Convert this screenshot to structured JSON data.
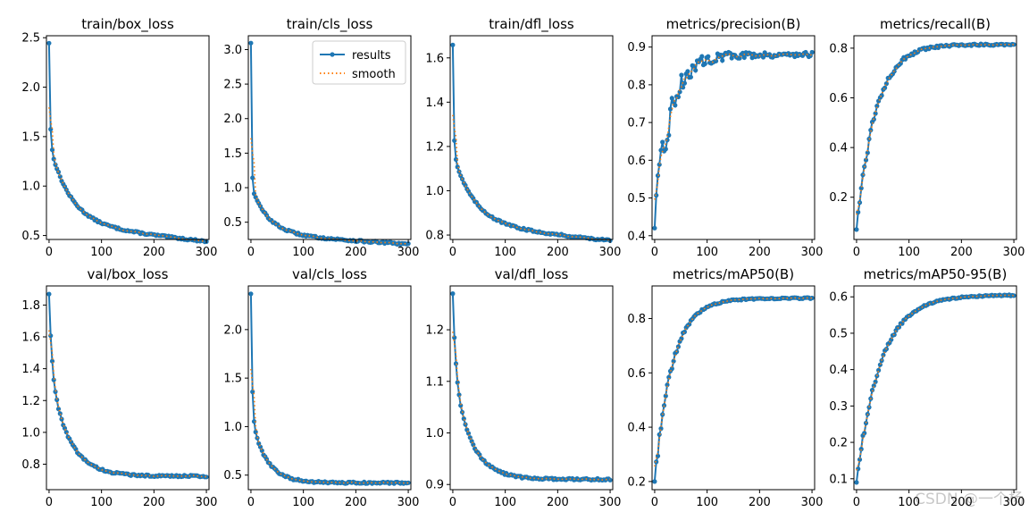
{
  "watermark": "CSDN @一个杨",
  "colors": {
    "results": "#1f77b4",
    "smooth": "#ff7f0e",
    "axis": "#000000",
    "background": "#ffffff"
  },
  "legend": {
    "results_label": "results",
    "smooth_label": "smooth",
    "placement": "upper-right of train/cls_loss"
  },
  "chart_data": [
    {
      "type": "line",
      "title": "train/box_loss",
      "xlim": [
        -5,
        305
      ],
      "ylim": [
        0.46,
        2.52
      ],
      "xticks": [
        0,
        100,
        200,
        300
      ],
      "yticks": [
        0.5,
        1.0,
        1.5,
        2.0,
        2.5
      ],
      "ytick_labels": [
        "0.5",
        "1.0",
        "1.5",
        "2.0",
        "2.5"
      ],
      "series": [
        {
          "name": "results",
          "kind": "decay",
          "start": 2.45,
          "asymptote": 0.62,
          "end": 0.55,
          "fast_rate": 0.55,
          "slow_rate": 0.025,
          "slow_weight": 0.45,
          "linear_slope": 0.0006
        }
      ]
    },
    {
      "type": "line",
      "title": "train/cls_loss",
      "xlim": [
        -5,
        305
      ],
      "ylim": [
        0.25,
        3.2
      ],
      "xticks": [
        0,
        100,
        200,
        300
      ],
      "yticks": [
        0.5,
        1.0,
        1.5,
        2.0,
        2.5,
        3.0
      ],
      "ytick_labels": [
        "0.5",
        "1.0",
        "1.5",
        "2.0",
        "2.5",
        "3.0"
      ],
      "legend": true,
      "series": [
        {
          "name": "results",
          "kind": "decay",
          "start": 3.1,
          "asymptote": 0.33,
          "end": 0.31,
          "fast_rate": 0.8,
          "slow_rate": 0.03,
          "slow_weight": 0.25,
          "linear_slope": 0.0005
        }
      ]
    },
    {
      "type": "line",
      "title": "train/dfl_loss",
      "xlim": [
        -5,
        305
      ],
      "ylim": [
        0.78,
        1.7
      ],
      "xticks": [
        0,
        100,
        200,
        300
      ],
      "yticks": [
        0.8,
        1.0,
        1.2,
        1.4,
        1.6
      ],
      "ytick_labels": [
        "0.8",
        "1.0",
        "1.2",
        "1.4",
        "1.6"
      ],
      "series": [
        {
          "name": "results",
          "kind": "decay",
          "start": 1.66,
          "asymptote": 0.85,
          "end": 0.83,
          "fast_rate": 0.6,
          "slow_rate": 0.025,
          "slow_weight": 0.4,
          "linear_slope": 0.00025
        }
      ]
    },
    {
      "type": "line",
      "title": "metrics/precision(B)",
      "xlim": [
        -5,
        305
      ],
      "ylim": [
        0.39,
        0.93
      ],
      "xticks": [
        0,
        100,
        200,
        300
      ],
      "yticks": [
        0.4,
        0.5,
        0.6,
        0.7,
        0.8,
        0.9
      ],
      "ytick_labels": [
        "0.4",
        "0.5",
        "0.6",
        "0.7",
        "0.8",
        "0.9"
      ],
      "series": [
        {
          "name": "results",
          "kind": "noisy_rise",
          "start": 0.42,
          "plateau": 0.88,
          "rate": 0.035,
          "noise": 0.055,
          "noise_decay": 0.02
        }
      ]
    },
    {
      "type": "line",
      "title": "metrics/recall(B)",
      "xlim": [
        -5,
        305
      ],
      "ylim": [
        0.03,
        0.85
      ],
      "xticks": [
        0,
        100,
        200,
        300
      ],
      "yticks": [
        0.2,
        0.4,
        0.6,
        0.8
      ],
      "ytick_labels": [
        "0.2",
        "0.4",
        "0.6",
        "0.8"
      ],
      "series": [
        {
          "name": "results",
          "kind": "noisy_rise",
          "start": 0.07,
          "plateau": 0.815,
          "rate": 0.028,
          "noise": 0.03,
          "noise_decay": 0.02
        }
      ]
    },
    {
      "type": "line",
      "title": "val/box_loss",
      "xlim": [
        -5,
        305
      ],
      "ylim": [
        0.64,
        1.92
      ],
      "xticks": [
        0,
        100,
        200,
        300
      ],
      "yticks": [
        0.8,
        1.0,
        1.2,
        1.4,
        1.6,
        1.8
      ],
      "ytick_labels": [
        "0.8",
        "1.0",
        "1.2",
        "1.4",
        "1.6",
        "1.8"
      ],
      "series": [
        {
          "name": "results",
          "kind": "decay",
          "start": 1.87,
          "asymptote": 0.725,
          "end": 0.725,
          "fast_rate": 0.2,
          "slow_rate": 0.028,
          "slow_weight": 0.6,
          "linear_slope": 0
        }
      ]
    },
    {
      "type": "line",
      "title": "val/cls_loss",
      "xlim": [
        -5,
        305
      ],
      "ylim": [
        0.35,
        2.45
      ],
      "xticks": [
        0,
        100,
        200,
        300
      ],
      "yticks": [
        0.5,
        1.0,
        1.5,
        2.0
      ],
      "ytick_labels": [
        "0.5",
        "1.0",
        "1.5",
        "2.0"
      ],
      "series": [
        {
          "name": "results",
          "kind": "decay",
          "start": 2.37,
          "asymptote": 0.42,
          "end": 0.42,
          "fast_rate": 0.45,
          "slow_rate": 0.035,
          "slow_weight": 0.35,
          "linear_slope": 0
        }
      ]
    },
    {
      "type": "line",
      "title": "val/dfl_loss",
      "xlim": [
        -5,
        305
      ],
      "ylim": [
        0.89,
        1.285
      ],
      "xticks": [
        0,
        100,
        200,
        300
      ],
      "yticks": [
        0.9,
        1.0,
        1.1,
        1.2
      ],
      "ytick_labels": [
        "0.9",
        "1.0",
        "1.1",
        "1.2"
      ],
      "series": [
        {
          "name": "results",
          "kind": "decay",
          "start": 1.27,
          "asymptote": 0.91,
          "end": 0.91,
          "fast_rate": 0.2,
          "slow_rate": 0.03,
          "slow_weight": 0.6,
          "linear_slope": 0
        }
      ]
    },
    {
      "type": "line",
      "title": "metrics/mAP50(B)",
      "xlim": [
        -5,
        305
      ],
      "ylim": [
        0.17,
        0.92
      ],
      "xticks": [
        0,
        100,
        200,
        300
      ],
      "yticks": [
        0.2,
        0.4,
        0.6,
        0.8
      ],
      "ytick_labels": [
        "0.2",
        "0.4",
        "0.6",
        "0.8"
      ],
      "series": [
        {
          "name": "results",
          "kind": "noisy_rise",
          "start": 0.2,
          "plateau": 0.875,
          "rate": 0.03,
          "noise": 0.02,
          "noise_decay": 0.03
        }
      ]
    },
    {
      "type": "line",
      "title": "metrics/mAP50-95(B)",
      "xlim": [
        -5,
        305
      ],
      "ylim": [
        0.07,
        0.63
      ],
      "xticks": [
        0,
        100,
        200,
        300
      ],
      "yticks": [
        0.1,
        0.2,
        0.3,
        0.4,
        0.5,
        0.6
      ],
      "ytick_labels": [
        "0.1",
        "0.2",
        "0.3",
        "0.4",
        "0.5",
        "0.6"
      ],
      "series": [
        {
          "name": "results",
          "kind": "noisy_rise",
          "start": 0.09,
          "plateau": 0.605,
          "rate": 0.022,
          "noise": 0.015,
          "noise_decay": 0.03
        }
      ]
    }
  ]
}
